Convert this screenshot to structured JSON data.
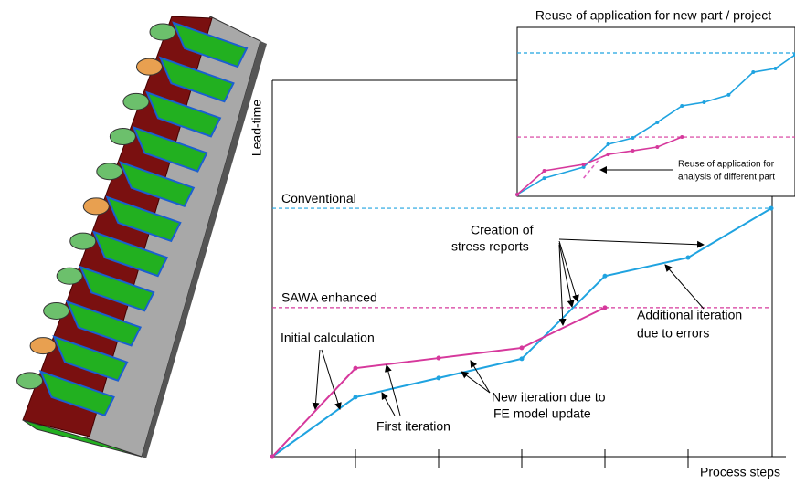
{
  "chart_data": [
    {
      "type": "line",
      "y_label": "Lead-time",
      "x_label": "Process steps",
      "xlim": [
        0,
        6
      ],
      "ylim": [
        0,
        100
      ],
      "xticks": [
        1,
        2,
        3,
        4,
        5
      ],
      "series": [
        {
          "color": "#1fa3e0",
          "x": [
            0,
            1,
            2,
            3,
            4,
            5,
            6
          ],
          "values": [
            0,
            15.8,
            20.9,
            26,
            48,
            52.9,
            66
          ]
        },
        {
          "color": "#d6389c",
          "x": [
            0,
            1,
            2,
            3,
            4
          ],
          "values": [
            0,
            23.5,
            26.2,
            28.9,
            39.6
          ]
        }
      ],
      "hlines": [
        {
          "label": "Conventional",
          "value": 66,
          "color": "#1fa3e0"
        },
        {
          "label": "SAWA enhanced",
          "value": 39.6,
          "color": "#d6389c"
        }
      ],
      "annotations": [
        "Initial calculation",
        "First iteration",
        "New iteration due to",
        "FE model update",
        "Creation of",
        "stress reports",
        "Additional iteration",
        "due to errors"
      ]
    },
    {
      "type": "line",
      "title": "Reuse of application for new part / project",
      "xlim": [
        0,
        11.3
      ],
      "ylim": [
        0,
        100
      ],
      "series": [
        {
          "color": "#1fa3e0",
          "x": [
            0,
            1.1,
            2.7,
            3.7,
            4.7,
            5.7,
            6.7,
            7.6,
            8.6,
            9.6,
            10.5,
            11.3
          ],
          "values": [
            0,
            9.8,
            16.4,
            30.1,
            33.9,
            43.2,
            53,
            55.2,
            59.6,
            73.2,
            75.4,
            83.6
          ]
        },
        {
          "color": "#d6389c",
          "x": [
            0,
            1.1,
            2.7,
            3.7,
            4.7,
            5.7,
            6.7
          ],
          "values": [
            0,
            14.2,
            18,
            24,
            26.2,
            28.4,
            34.4
          ]
        },
        {
          "color": "#e060c0",
          "dashed": true,
          "x": [
            2.7,
            3.4
          ],
          "values": [
            9.8,
            22.4
          ]
        }
      ],
      "hlines": [
        {
          "value": 84.7,
          "color": "#1fa3e0"
        },
        {
          "value": 34.4,
          "color": "#d6389c"
        }
      ],
      "annotations": [
        "Reuse of application for",
        "analysis of different part"
      ]
    }
  ]
}
